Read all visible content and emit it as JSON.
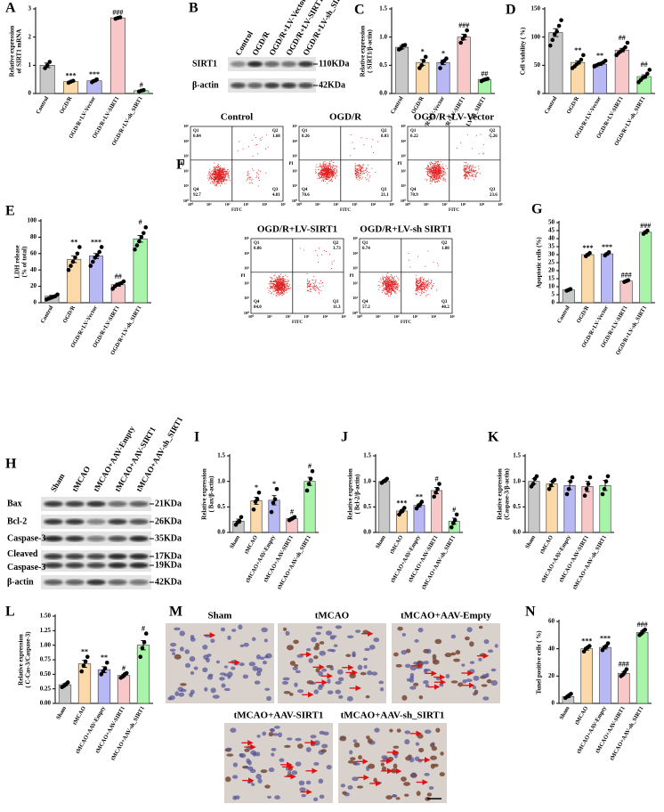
{
  "chart_data": [
    {
      "panel": "A",
      "type": "bar",
      "y_label": [
        "Relative expression",
        "of SIRT1 mRNA"
      ],
      "categories": [
        "Control",
        "OGD/R",
        "OGD/R+LV-Vector",
        "OGD/R+LV-SIRT1",
        "OGD/R+LV-sh_SIRT1"
      ],
      "values": [
        1.0,
        0.42,
        0.45,
        2.68,
        0.1
      ],
      "errors": [
        0.08,
        0.02,
        0.03,
        0.02,
        0.02
      ],
      "points": [
        [
          0.9,
          1.0,
          1.12
        ],
        [
          0.38,
          0.42,
          0.45
        ],
        [
          0.4,
          0.45,
          0.5
        ],
        [
          2.65,
          2.68,
          2.7
        ],
        [
          0.07,
          0.1,
          0.12
        ]
      ],
      "annotations": [
        null,
        "***",
        "***",
        "###",
        "#"
      ],
      "colors": [
        "#c8c8c8",
        "#fcd9a8",
        "#b8b8f4",
        "#f8c8c8",
        "#a8f4a8"
      ],
      "ylim": [
        0,
        3
      ],
      "yticks": [
        0,
        1,
        2,
        3
      ]
    },
    {
      "panel": "C",
      "type": "bar",
      "y_label": [
        "Relative expression",
        "( SIRT1/β-actin)"
      ],
      "categories": [
        "Control",
        "OGD/R",
        "OGD/R+LV-Vector",
        "OGD/R+LV-SIRT1",
        "OGD/R+LV-sh_SIRT1"
      ],
      "values": [
        0.82,
        0.55,
        0.55,
        1.0,
        0.25
      ],
      "errors": [
        0.03,
        0.05,
        0.04,
        0.05,
        0.01
      ],
      "points": [
        [
          0.78,
          0.8,
          0.85,
          0.86
        ],
        [
          0.45,
          0.5,
          0.58,
          0.65
        ],
        [
          0.45,
          0.55,
          0.58,
          0.62
        ],
        [
          0.9,
          0.97,
          1.02,
          1.12
        ],
        [
          0.22,
          0.24,
          0.25,
          0.26
        ]
      ],
      "annotations": [
        null,
        "*",
        "*",
        "###",
        "##"
      ],
      "colors": [
        "#c8c8c8",
        "#fcd9a8",
        "#b8b8f4",
        "#f8c8c8",
        "#a8f4a8"
      ],
      "ylim": [
        0,
        1.5
      ],
      "yticks": [
        {
          "value": 0,
          "label": "0.0"
        },
        {
          "value": 0.5,
          "label": "0.5"
        },
        {
          "value": 1,
          "label": "1.0"
        },
        {
          "value": 1.5,
          "label": "1.5"
        }
      ]
    },
    {
      "panel": "D",
      "type": "bar",
      "y_label": "Cell viability ( %)",
      "categories": [
        "Control",
        "OGD/R",
        "OGD/R+LV-Vector",
        "OGD/R+LV-SIRT1",
        "OGD/R+LV-sh_SIRT1"
      ],
      "values": [
        108,
        55,
        52,
        77,
        30
      ],
      "errors": [
        7,
        3,
        2,
        3,
        3
      ],
      "points": [
        [
          85,
          95,
          105,
          110,
          120,
          130
        ],
        [
          45,
          48,
          52,
          55,
          60,
          68
        ],
        [
          48,
          50,
          52,
          53,
          55,
          58
        ],
        [
          68,
          72,
          75,
          78,
          82,
          90
        ],
        [
          20,
          24,
          28,
          30,
          35,
          42
        ]
      ],
      "annotations": [
        null,
        "**",
        "**",
        "##",
        "##"
      ],
      "colors": [
        "#c8c8c8",
        "#fcd9a8",
        "#b8b8f4",
        "#f8c8c8",
        "#a8f4a8"
      ],
      "ylim": [
        0,
        150
      ],
      "yticks": [
        0,
        50,
        100,
        150
      ]
    },
    {
      "panel": "E",
      "type": "bar",
      "y_label": [
        "LDH release",
        "(% of total)"
      ],
      "categories": [
        "Control",
        "OGD/R",
        "OGD/R+LV-Vector",
        "OGD/R+LV-SIRT1",
        "OGD/R+LV-sh_SIRT1"
      ],
      "values": [
        8,
        53,
        57,
        22,
        78
      ],
      "errors": [
        1,
        4,
        3,
        2,
        4
      ],
      "points": [
        [
          4,
          5,
          6,
          7,
          8,
          10
        ],
        [
          40,
          45,
          50,
          55,
          60,
          68
        ],
        [
          45,
          50,
          55,
          58,
          62,
          68
        ],
        [
          17,
          20,
          22,
          23,
          24,
          26
        ],
        [
          65,
          70,
          75,
          80,
          85,
          92
        ]
      ],
      "annotations": [
        null,
        "**",
        "***",
        "##",
        "#"
      ],
      "colors": [
        "#c8c8c8",
        "#fcd9a8",
        "#b8b8f4",
        "#f8c8c8",
        "#a8f4a8"
      ],
      "ylim": [
        0,
        100
      ],
      "yticks": [
        0,
        20,
        40,
        60,
        80,
        100
      ]
    },
    {
      "panel": "G",
      "type": "bar",
      "y_label": "Apoptotic cells (%)",
      "categories": [
        "Control",
        "OGD/R",
        "OGD/R+LV-Vector",
        "OGD/R+LV-SIRT1",
        "OGD/R+LV-sh_SIRT1"
      ],
      "values": [
        8,
        30,
        30.5,
        13.5,
        44
      ],
      "errors": [
        0.4,
        0.6,
        0.6,
        0.3,
        0.8
      ],
      "points": [
        [
          7.5,
          8,
          8.5
        ],
        [
          29,
          30,
          31
        ],
        [
          29.5,
          30.5,
          31.5
        ],
        [
          13,
          13.5,
          14
        ],
        [
          43,
          44,
          45
        ]
      ],
      "annotations": [
        null,
        "***",
        "***",
        "###",
        "###"
      ],
      "colors": [
        "#c8c8c8",
        "#fcd9a8",
        "#b8b8f4",
        "#f8c8c8",
        "#a8f4a8"
      ],
      "ylim": [
        0,
        50
      ],
      "yticks": [
        0,
        5,
        10,
        15,
        20,
        25,
        30,
        35,
        40,
        45,
        50
      ]
    },
    {
      "panel": "I",
      "type": "bar",
      "y_label": [
        "Relative expression",
        "( Bax/β-actin)"
      ],
      "categories": [
        "Sham",
        "tMCAO",
        "tMCAO+AAV-Empty",
        "tMCAO+AAV-SIRT1",
        "tMCAO+AAV-sh_SIRT1"
      ],
      "values": [
        0.22,
        0.62,
        0.63,
        0.27,
        1.0
      ],
      "errors": [
        0.04,
        0.07,
        0.09,
        0.02,
        0.08
      ],
      "points": [
        [
          0.15,
          0.2,
          0.22,
          0.3
        ],
        [
          0.45,
          0.6,
          0.65,
          0.78
        ],
        [
          0.4,
          0.58,
          0.65,
          0.85
        ],
        [
          0.24,
          0.26,
          0.28,
          0.3
        ],
        [
          0.82,
          0.95,
          1.05,
          1.2
        ]
      ],
      "annotations": [
        null,
        "*",
        "*",
        "#",
        "#"
      ],
      "colors": [
        "#c8c8c8",
        "#fcd9a8",
        "#b8b8f4",
        "#f8c8c8",
        "#a8f4a8"
      ],
      "ylim": [
        0,
        1.5
      ],
      "yticks": [
        {
          "value": 0,
          "label": "0.0"
        },
        {
          "value": 0.5,
          "label": "0.5"
        },
        {
          "value": 1,
          "label": "1.0"
        },
        {
          "value": 1.5,
          "label": "1.5"
        }
      ]
    },
    {
      "panel": "J",
      "type": "bar",
      "y_label": [
        "Relative expression",
        "( Bcl-2/β-actin)"
      ],
      "categories": [
        "Sham",
        "tMCAO",
        "tMCAO+AAV-Empty",
        "tMCAO+AAV-SIRT1",
        "tMCAO+AAV-sh_SIRT1"
      ],
      "values": [
        1.0,
        0.42,
        0.53,
        0.82,
        0.22
      ],
      "errors": [
        0.02,
        0.03,
        0.03,
        0.06,
        0.06
      ],
      "points": [
        [
          0.97,
          1.0,
          1.02,
          1.05
        ],
        [
          0.35,
          0.4,
          0.43,
          0.48
        ],
        [
          0.47,
          0.52,
          0.55,
          0.6
        ],
        [
          0.7,
          0.78,
          0.85,
          0.95
        ],
        [
          0.1,
          0.18,
          0.24,
          0.35
        ]
      ],
      "annotations": [
        null,
        "***",
        "**",
        "#",
        "#"
      ],
      "colors": [
        "#c8c8c8",
        "#fcd9a8",
        "#b8b8f4",
        "#f8c8c8",
        "#a8f4a8"
      ],
      "ylim": [
        0,
        1.5
      ],
      "yticks": [
        {
          "value": 0,
          "label": "0.0"
        },
        {
          "value": 0.5,
          "label": "0.5"
        },
        {
          "value": 1,
          "label": "1.0"
        },
        {
          "value": 1.5,
          "label": "1.5"
        }
      ]
    },
    {
      "panel": "K",
      "type": "bar",
      "y_label": [
        "Relative expression",
        "(Caspase-3/β-actin)"
      ],
      "categories": [
        "Sham",
        "tMCAO",
        "tMCAO+AAV-Empty",
        "tMCAO+AAV-SIRT1",
        "tMCAO+AAV-sh_SIRT1"
      ],
      "values": [
        1.0,
        0.95,
        0.92,
        0.9,
        0.92
      ],
      "errors": [
        0.05,
        0.05,
        0.08,
        0.1,
        0.1
      ],
      "points": [
        [
          0.9,
          0.95,
          1.05,
          1.1
        ],
        [
          0.85,
          0.92,
          1.0,
          1.03
        ],
        [
          0.75,
          0.85,
          1.0,
          1.08
        ],
        [
          0.72,
          0.85,
          0.95,
          1.08
        ],
        [
          0.75,
          0.85,
          1.0,
          1.1
        ]
      ],
      "annotations": [
        null,
        null,
        null,
        null,
        null
      ],
      "colors": [
        "#c8c8c8",
        "#fcd9a8",
        "#b8b8f4",
        "#f8c8c8",
        "#a8f4a8"
      ],
      "ylim": [
        0,
        1.5
      ],
      "yticks": [
        {
          "value": 0,
          "label": "0.0"
        },
        {
          "value": 0.5,
          "label": "0.5"
        },
        {
          "value": 1,
          "label": "1.0"
        },
        {
          "value": 1.5,
          "label": "1.5"
        }
      ]
    },
    {
      "panel": "L",
      "type": "bar",
      "y_label": [
        "Relative expression",
        "( C-Cas-3/Caspase-3)"
      ],
      "categories": [
        "Sham",
        "tMCAO",
        "tMCAO+AAV-Empty",
        "tMCAO+AAV-SIRT1",
        "tMCAO+AAV-sh_SIRT1"
      ],
      "values": [
        0.32,
        0.68,
        0.58,
        0.48,
        1.0
      ],
      "errors": [
        0.02,
        0.06,
        0.05,
        0.02,
        0.08
      ],
      "points": [
        [
          0.28,
          0.3,
          0.33,
          0.36
        ],
        [
          0.55,
          0.65,
          0.72,
          0.8
        ],
        [
          0.5,
          0.55,
          0.6,
          0.7
        ],
        [
          0.44,
          0.46,
          0.5,
          0.52
        ],
        [
          0.8,
          0.95,
          1.05,
          1.2
        ]
      ],
      "annotations": [
        null,
        "**",
        "**",
        "#",
        "#"
      ],
      "colors": [
        "#c8c8c8",
        "#fcd9a8",
        "#b8b8f4",
        "#f8c8c8",
        "#a8f4a8"
      ],
      "ylim": [
        0,
        1.5
      ],
      "yticks": [
        {
          "value": 0,
          "label": "0.00"
        },
        {
          "value": 0.25,
          "label": "0.25"
        },
        {
          "value": 0.5,
          "label": "0.50"
        },
        {
          "value": 0.75,
          "label": "0.75"
        },
        {
          "value": 1,
          "label": "1.00"
        },
        {
          "value": 1.25,
          "label": "1.25"
        },
        {
          "value": 1.5,
          "label": "1.50"
        }
      ]
    },
    {
      "panel": "N",
      "type": "bar",
      "y_label": "Tunel positive cells ( %)",
      "categories": [
        "Sham",
        "tMCAO",
        "tMCAO+AAV-Empty",
        "tMCAO+AAV-SIRT1",
        "tMCAO+AAV-sh_SIRT1"
      ],
      "values": [
        5,
        40,
        41,
        22,
        52
      ],
      "errors": [
        0.8,
        1,
        1.2,
        1,
        0.9
      ],
      "points": [
        [
          4,
          5,
          6,
          7
        ],
        [
          38,
          40,
          41,
          42
        ],
        [
          39,
          41,
          42,
          44
        ],
        [
          20,
          21,
          23,
          25
        ],
        [
          50,
          51,
          53,
          54
        ]
      ],
      "annotations": [
        null,
        "***",
        "***",
        "###",
        "###"
      ],
      "colors": [
        "#c8c8c8",
        "#fcd9a8",
        "#b8b8f4",
        "#f8c8c8",
        "#a8f4a8"
      ],
      "ylim": [
        0,
        60
      ],
      "yticks": [
        0,
        20,
        40,
        60
      ]
    }
  ],
  "blots": [
    {
      "panel": "B",
      "lanes": [
        "Control",
        "OGD/R",
        "OGD/R+LV-Vector",
        "OGD/R+LV-SIRT1",
        "OGD/R+LV-sh_SIRT1"
      ],
      "rows": [
        {
          "label": [
            "SIRT1"
          ],
          "sizes": [
            "110KDa"
          ]
        },
        {
          "label": [
            "β-actin"
          ],
          "sizes": [
            "42KDa"
          ]
        }
      ]
    },
    {
      "panel": "H",
      "lanes": [
        "Sham",
        "tMCAO",
        "tMCAO+AAV-Empty",
        "tMCAO+AAV-SIRT1",
        "tMCAO+AAV-sh_SIRT1"
      ],
      "rows": [
        {
          "label": [
            "Bax"
          ],
          "sizes": [
            "21KDa"
          ]
        },
        {
          "label": [
            "Bcl-2"
          ],
          "sizes": [
            "26KDa"
          ]
        },
        {
          "label": [
            "Caspase-3"
          ],
          "sizes": [
            "35KDa"
          ]
        },
        {
          "label": [
            "Cleaved",
            "Caspase-3"
          ],
          "sizes": [
            "17KDa",
            "19KDa"
          ]
        },
        {
          "label": [
            "β-actin"
          ],
          "sizes": [
            "42KDa"
          ]
        }
      ]
    }
  ],
  "flow": {
    "panel": "F",
    "x_label": "FITC",
    "y_label": "PI",
    "ticks": [
      "10⁰",
      "10¹",
      "10²",
      "10³",
      "10⁴",
      "10⁵"
    ],
    "quadrant_names": [
      "Q1",
      "Q2",
      "Q3",
      "Q4"
    ],
    "plots": [
      {
        "title": "Control",
        "quadrants": [
          "0.84",
          "1.68",
          "4.81",
          "92.7"
        ]
      },
      {
        "title": "OGD/R",
        "quadrants": [
          "0.26",
          "8.03",
          "21.1",
          "70.6"
        ]
      },
      {
        "title": "OGD/R+LV-Vector",
        "quadrants": [
          "0.22",
          "5.26",
          "23.6",
          "70.9"
        ]
      },
      {
        "title": "OGD/R+LV-SIRT1",
        "quadrants": [
          "0.86",
          "3.73",
          "11.3",
          "84.0"
        ]
      },
      {
        "title": "OGD/R+LV-sh SIRT1",
        "quadrants": [
          "0.74",
          "1.80",
          "40.2",
          "57.2"
        ]
      }
    ]
  },
  "ihc": {
    "panel": "M",
    "images": [
      {
        "title": "Sham"
      },
      {
        "title": "tMCAO"
      },
      {
        "title": "tMCAO+AAV-Empty"
      },
      {
        "title": "tMCAO+AAV-SIRT1"
      },
      {
        "title": "tMCAO+AAV-sh_SIRT1"
      }
    ]
  }
}
